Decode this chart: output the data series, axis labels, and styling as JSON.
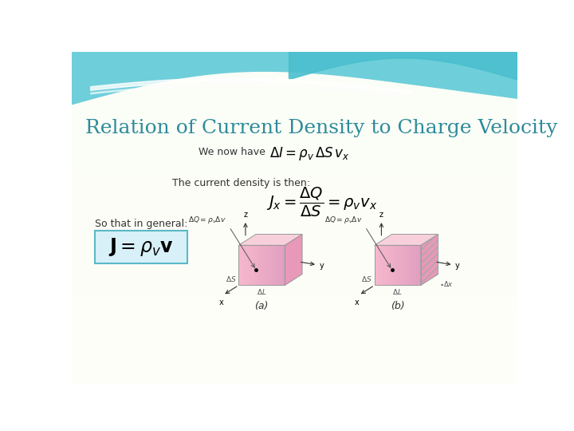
{
  "title": "Relation of Current Density to Charge Velocity",
  "title_color": "#2E8B9A",
  "title_fontsize": 18,
  "line1_label": "We now have",
  "line1_eq": "$\\Delta I = \\rho_v \\, \\Delta S \\, v_x$",
  "line2_label": "The current density is then:",
  "line2_eq": "$J_x = \\dfrac{\\Delta Q}{\\Delta S} = \\rho_v v_x$",
  "line3_label": "So that in general:",
  "box_eq": "$\\mathbf{J} = \\rho_v \\mathbf{v}$",
  "box_border_color": "#5BB8C8",
  "box_bg_color": "#D8F0F8",
  "face_front": "#F5B8CC",
  "face_top": "#F8D0DC",
  "face_right": "#E898B8",
  "edge_color": "#999999",
  "label_a": "(a)",
  "label_b": "(b)"
}
